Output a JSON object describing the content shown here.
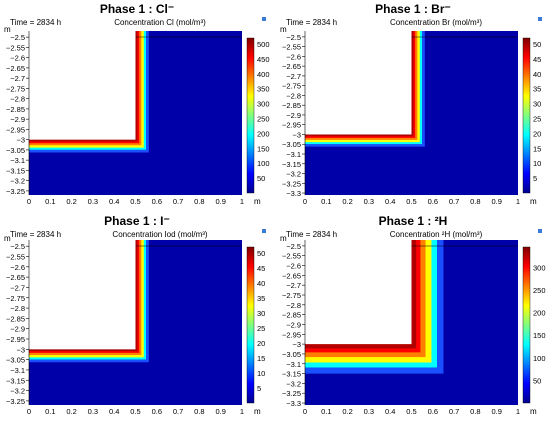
{
  "chart_data": [
    {
      "type": "heatmap",
      "panel_title": "Phase 1 : Cl⁻",
      "time_label": "Time = 2834 h",
      "field_label": "Concentration  Cl (mol/m³)",
      "y_unit": "m",
      "x_unit": "m",
      "x_ticks": [
        "0",
        "0.1",
        "0.2",
        "0.3",
        "0.4",
        "0.5",
        "0.6",
        "0.7",
        "0.8",
        "0.9",
        "1"
      ],
      "y_ticks": [
        "-2.5",
        "-2.55",
        "-2.6",
        "-2.65",
        "-2.7",
        "-2.75",
        "-2.8",
        "-2.85",
        "-2.9",
        "-2.95",
        "-3",
        "-3.05",
        "-3.1",
        "-3.15",
        "-3.2",
        "-3.25"
      ],
      "xlim": [
        0,
        1.0
      ],
      "ylim": [
        -3.27,
        -2.47
      ],
      "colorbar_ticks": [
        "500",
        "450",
        "400",
        "350",
        "300",
        "250",
        "200",
        "150",
        "100",
        "50"
      ],
      "colorbar_range": [
        0,
        520
      ],
      "domain_corner": {
        "x": 0.5,
        "y": -3.0
      },
      "front_width_m": 0.05
    },
    {
      "type": "heatmap",
      "panel_title": "Phase 1 : Br⁻",
      "time_label": "Time = 2834 h",
      "field_label": "Concentration  Br (mol/m³)",
      "y_unit": "m",
      "x_unit": "m",
      "x_ticks": [
        "0",
        "0.1",
        "0.2",
        "0.3",
        "0.4",
        "0.5",
        "0.6",
        "0.7",
        "0.8",
        "0.9",
        "1"
      ],
      "y_ticks": [
        "-2.5",
        "-2.55",
        "-2.6",
        "-2.65",
        "-2.7",
        "-2.75",
        "-2.8",
        "-2.85",
        "-2.9",
        "-2.95",
        "-3",
        "-3.05",
        "-3.1",
        "-3.15",
        "-3.2",
        "-3.25",
        "-3.3"
      ],
      "xlim": [
        0,
        1.0
      ],
      "ylim": [
        -3.31,
        -2.47
      ],
      "colorbar_ticks": [
        "50",
        "45",
        "40",
        "35",
        "30",
        "25",
        "20",
        "15",
        "10",
        "5"
      ],
      "colorbar_range": [
        0,
        52
      ],
      "domain_corner": {
        "x": 0.5,
        "y": -3.0
      },
      "front_width_m": 0.05
    },
    {
      "type": "heatmap",
      "panel_title": "Phase 1 : I⁻",
      "time_label": "Time = 2834 h",
      "field_label": "Concentration  Iod (mol/m³)",
      "y_unit": "m",
      "x_unit": "m",
      "x_ticks": [
        "0",
        "0.1",
        "0.2",
        "0.3",
        "0.4",
        "0.5",
        "0.6",
        "0.7",
        "0.8",
        "0.9",
        "1"
      ],
      "y_ticks": [
        "-2.5",
        "-2.55",
        "-2.6",
        "-2.65",
        "-2.7",
        "-2.75",
        "-2.8",
        "-2.85",
        "-2.9",
        "-2.95",
        "-3",
        "-3.05",
        "-3.1",
        "-3.15",
        "-3.2",
        "-3.25"
      ],
      "xlim": [
        0,
        1.0
      ],
      "ylim": [
        -3.27,
        -2.47
      ],
      "colorbar_ticks": [
        "50",
        "45",
        "40",
        "35",
        "30",
        "25",
        "20",
        "15",
        "10",
        "5"
      ],
      "colorbar_range": [
        0,
        52
      ],
      "domain_corner": {
        "x": 0.5,
        "y": -3.0
      },
      "front_width_m": 0.05
    },
    {
      "type": "heatmap",
      "panel_title": "Phase 1 : ²H",
      "time_label": "Time = 2834 h",
      "field_label": "Concentration  ²H (mol/m³)",
      "y_unit": "m",
      "x_unit": "m",
      "x_ticks": [
        "0",
        "0.1",
        "0.2",
        "0.3",
        "0.4",
        "0.5",
        "0.6",
        "0.7",
        "0.8",
        "0.9",
        "1"
      ],
      "y_ticks": [
        "-2.5",
        "-2.55",
        "-2.6",
        "-2.65",
        "-2.7",
        "-2.75",
        "-2.8",
        "-2.85",
        "-2.9",
        "-2.95",
        "-3",
        "-3.05",
        "-3.1",
        "-3.15",
        "-3.2",
        "-3.25",
        "-3.3"
      ],
      "xlim": [
        0,
        1.0
      ],
      "ylim": [
        -3.31,
        -2.47
      ],
      "colorbar_ticks": [
        "300",
        "250",
        "200",
        "150",
        "100",
        "50"
      ],
      "colorbar_range": [
        0,
        345
      ],
      "domain_corner": {
        "x": 0.5,
        "y": -3.0
      },
      "front_width_m": 0.12
    }
  ]
}
